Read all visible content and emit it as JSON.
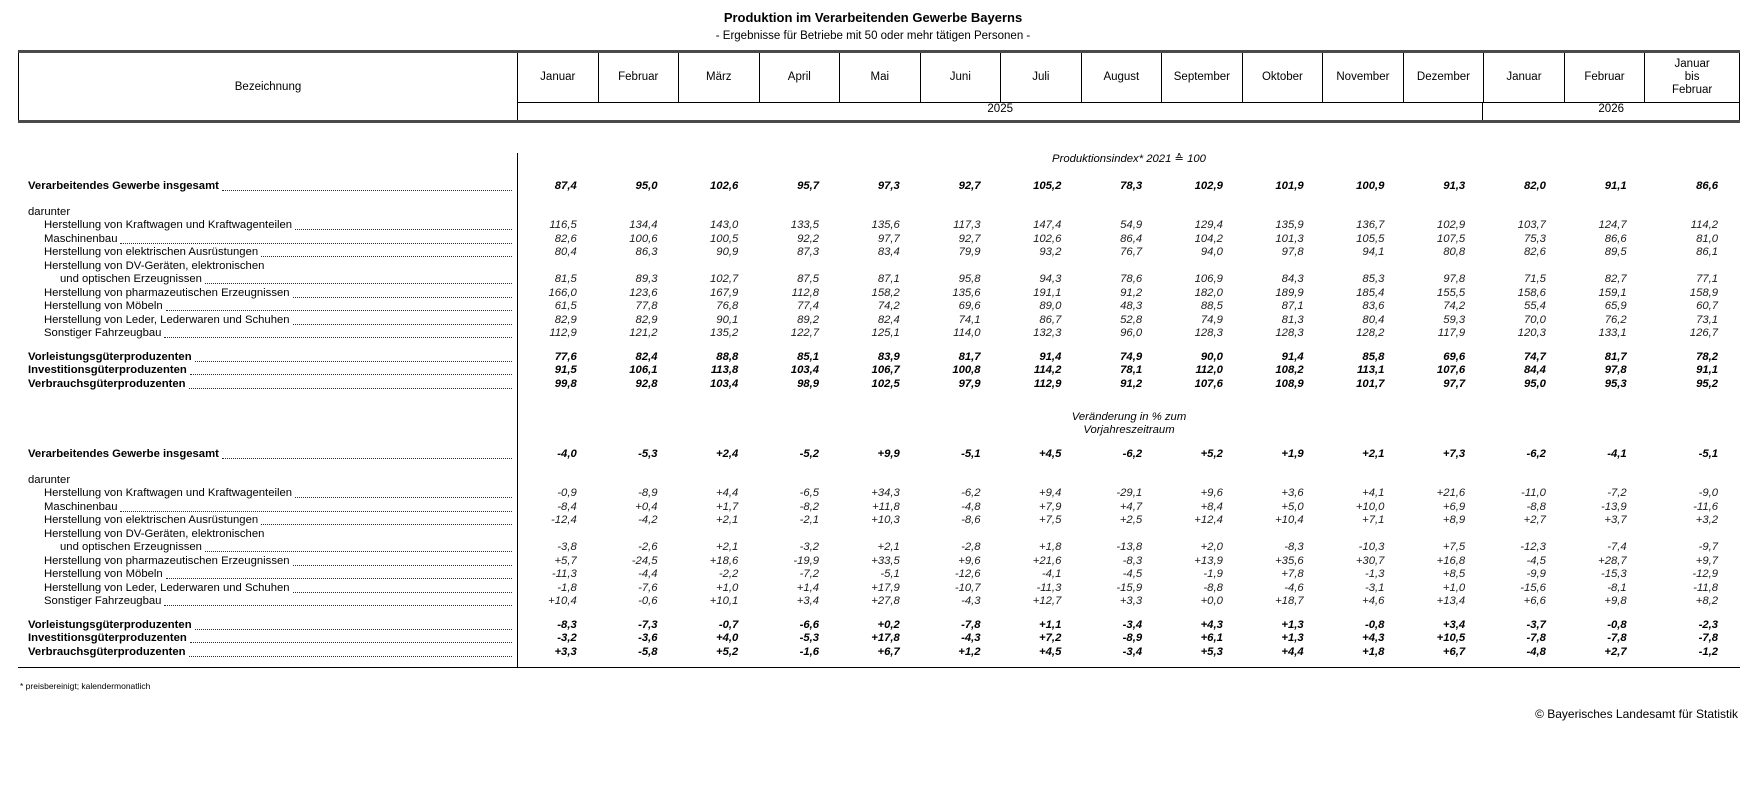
{
  "title": "Produktion im Verarbeitenden Gewerbe Bayerns",
  "subtitle": "- Ergebnisse für Betriebe mit 50 oder mehr tätigen Personen -",
  "footnote": "* preisbereinigt; kalendermonatlich",
  "copyright": "© Bayerisches Landesamt für Statistik",
  "table": {
    "label_col_header": "Bezeichnung",
    "month_cols": [
      "Januar",
      "Februar",
      "März",
      "April",
      "Mai",
      "Juni",
      "Juli",
      "August",
      "September",
      "Oktober",
      "November",
      "Dezember",
      "Januar",
      "Februar",
      "Januar\nbis\nFebruar"
    ],
    "year_2025": "2025",
    "year_2026": "2026",
    "sections": [
      {
        "heading_lines": [
          "Produktionsindex* 2021 ≙ 100"
        ],
        "rows": [
          {
            "label": "Verarbeitendes Gewerbe insgesamt",
            "style": "total",
            "values": [
              "87,4",
              "95,0",
              "102,6",
              "95,7",
              "97,3",
              "92,7",
              "105,2",
              "78,3",
              "102,9",
              "101,9",
              "100,9",
              "91,3",
              "82,0",
              "91,1",
              "86,6"
            ]
          },
          {
            "label": "darunter",
            "style": "plain"
          },
          {
            "label": "Herstellung von Kraftwagen und Kraftwagenteilen",
            "style": "sub",
            "values": [
              "116,5",
              "134,4",
              "143,0",
              "133,5",
              "135,6",
              "117,3",
              "147,4",
              "54,9",
              "129,4",
              "135,9",
              "136,7",
              "102,9",
              "103,7",
              "124,7",
              "114,2"
            ]
          },
          {
            "label": "Maschinenbau",
            "style": "sub",
            "values": [
              "82,6",
              "100,6",
              "100,5",
              "92,2",
              "97,7",
              "92,7",
              "102,6",
              "86,4",
              "104,2",
              "101,3",
              "105,5",
              "107,5",
              "75,3",
              "86,6",
              "81,0"
            ]
          },
          {
            "label": "Herstellung von elektrischen Ausrüstungen",
            "style": "sub",
            "values": [
              "80,4",
              "86,3",
              "90,9",
              "87,3",
              "83,4",
              "79,9",
              "93,2",
              "76,7",
              "94,0",
              "97,8",
              "94,1",
              "80,8",
              "82,6",
              "89,5",
              "86,1"
            ]
          },
          {
            "label": "Herstellung von DV-Geräten, elektronischen",
            "label2": "und optischen Erzeugnissen",
            "style": "sub",
            "values": [
              "81,5",
              "89,3",
              "102,7",
              "87,5",
              "87,1",
              "95,8",
              "94,3",
              "78,6",
              "106,9",
              "84,3",
              "85,3",
              "97,8",
              "71,5",
              "82,7",
              "77,1"
            ]
          },
          {
            "label": "Herstellung von pharmazeutischen Erzeugnissen",
            "style": "sub",
            "values": [
              "166,0",
              "123,6",
              "167,9",
              "112,8",
              "158,2",
              "135,6",
              "191,1",
              "91,2",
              "182,0",
              "189,9",
              "185,4",
              "155,5",
              "158,6",
              "159,1",
              "158,9"
            ]
          },
          {
            "label": "Herstellung von Möbeln",
            "style": "sub",
            "values": [
              "61,5",
              "77,8",
              "76,8",
              "77,4",
              "74,2",
              "69,6",
              "89,0",
              "48,3",
              "88,5",
              "87,1",
              "83,6",
              "74,2",
              "55,4",
              "65,9",
              "60,7"
            ]
          },
          {
            "label": "Herstellung von Leder, Lederwaren und Schuhen",
            "style": "sub",
            "values": [
              "82,9",
              "82,9",
              "90,1",
              "89,2",
              "82,4",
              "74,1",
              "86,7",
              "52,8",
              "74,9",
              "81,3",
              "80,4",
              "59,3",
              "70,0",
              "76,2",
              "73,1"
            ]
          },
          {
            "label": "Sonstiger Fahrzeugbau",
            "style": "sub",
            "values": [
              "112,9",
              "121,2",
              "135,2",
              "122,7",
              "125,1",
              "114,0",
              "132,3",
              "96,0",
              "128,3",
              "128,3",
              "128,2",
              "117,9",
              "120,3",
              "133,1",
              "126,7"
            ]
          },
          {
            "label": "Vorleistungsgüterproduzenten",
            "style": "total",
            "gap": true,
            "values": [
              "77,6",
              "82,4",
              "88,8",
              "85,1",
              "83,9",
              "81,7",
              "91,4",
              "74,9",
              "90,0",
              "91,4",
              "85,8",
              "69,6",
              "74,7",
              "81,7",
              "78,2"
            ]
          },
          {
            "label": "Investitionsgüterproduzenten",
            "style": "total",
            "values": [
              "91,5",
              "106,1",
              "113,8",
              "103,4",
              "106,7",
              "100,8",
              "114,2",
              "78,1",
              "112,0",
              "108,2",
              "113,1",
              "107,6",
              "84,4",
              "97,8",
              "91,1"
            ]
          },
          {
            "label": "Verbrauchsgüterproduzenten",
            "style": "total",
            "values": [
              "99,8",
              "92,8",
              "103,4",
              "98,9",
              "102,5",
              "97,9",
              "112,9",
              "91,2",
              "107,6",
              "108,9",
              "101,7",
              "97,7",
              "95,0",
              "95,3",
              "95,2"
            ]
          }
        ]
      },
      {
        "heading_lines": [
          "Veränderung in % zum",
          "Vorjahreszeitraum"
        ],
        "rows": [
          {
            "label": "Verarbeitendes Gewerbe insgesamt",
            "style": "total",
            "values": [
              "-4,0",
              "-5,3",
              "+2,4",
              "-5,2",
              "+9,9",
              "-5,1",
              "+4,5",
              "-6,2",
              "+5,2",
              "+1,9",
              "+2,1",
              "+7,3",
              "-6,2",
              "-4,1",
              "-5,1"
            ]
          },
          {
            "label": "darunter",
            "style": "plain"
          },
          {
            "label": "Herstellung von Kraftwagen und Kraftwagenteilen",
            "style": "sub",
            "values": [
              "-0,9",
              "-8,9",
              "+4,4",
              "-6,5",
              "+34,3",
              "-6,2",
              "+9,4",
              "-29,1",
              "+9,6",
              "+3,6",
              "+4,1",
              "+21,6",
              "-11,0",
              "-7,2",
              "-9,0"
            ]
          },
          {
            "label": "Maschinenbau",
            "style": "sub",
            "values": [
              "-8,4",
              "+0,4",
              "+1,7",
              "-8,2",
              "+11,8",
              "-4,8",
              "+7,9",
              "+4,7",
              "+8,4",
              "+5,0",
              "+10,0",
              "+6,9",
              "-8,8",
              "-13,9",
              "-11,6"
            ]
          },
          {
            "label": "Herstellung von elektrischen Ausrüstungen",
            "style": "sub",
            "values": [
              "-12,4",
              "-4,2",
              "+2,1",
              "-2,1",
              "+10,3",
              "-8,6",
              "+7,5",
              "+2,5",
              "+12,4",
              "+10,4",
              "+7,1",
              "+8,9",
              "+2,7",
              "+3,7",
              "+3,2"
            ]
          },
          {
            "label": "Herstellung von DV-Geräten, elektronischen",
            "label2": "und optischen Erzeugnissen",
            "style": "sub",
            "values": [
              "-3,8",
              "-2,6",
              "+2,1",
              "-3,2",
              "+2,1",
              "-2,8",
              "+1,8",
              "-13,8",
              "+2,0",
              "-8,3",
              "-10,3",
              "+7,5",
              "-12,3",
              "-7,4",
              "-9,7"
            ]
          },
          {
            "label": "Herstellung von pharmazeutischen Erzeugnissen",
            "style": "sub",
            "values": [
              "+5,7",
              "-24,5",
              "+18,6",
              "-19,9",
              "+33,5",
              "+9,6",
              "+21,6",
              "-8,3",
              "+13,9",
              "+35,6",
              "+30,7",
              "+16,8",
              "-4,5",
              "+28,7",
              "+9,7"
            ]
          },
          {
            "label": "Herstellung von Möbeln",
            "style": "sub",
            "values": [
              "-11,3",
              "-4,4",
              "-2,2",
              "-7,2",
              "-5,1",
              "-12,6",
              "-4,1",
              "-4,5",
              "-1,9",
              "+7,8",
              "-1,3",
              "+8,5",
              "-9,9",
              "-15,3",
              "-12,9"
            ]
          },
          {
            "label": "Herstellung von Leder, Lederwaren und Schuhen",
            "style": "sub",
            "values": [
              "-1,8",
              "-7,6",
              "+1,0",
              "+1,4",
              "+17,9",
              "-10,7",
              "-11,3",
              "-15,9",
              "-8,8",
              "-4,6",
              "-3,1",
              "+1,0",
              "-15,6",
              "-8,1",
              "-11,8"
            ]
          },
          {
            "label": "Sonstiger Fahrzeugbau",
            "style": "sub",
            "values": [
              "+10,4",
              "-0,6",
              "+10,1",
              "+3,4",
              "+27,8",
              "-4,3",
              "+12,7",
              "+3,3",
              "+0,0",
              "+18,7",
              "+4,6",
              "+13,4",
              "+6,6",
              "+9,8",
              "+8,2"
            ]
          },
          {
            "label": "Vorleistungsgüterproduzenten",
            "style": "total",
            "gap": true,
            "values": [
              "-8,3",
              "-7,3",
              "-0,7",
              "-6,6",
              "+0,2",
              "-7,8",
              "+1,1",
              "-3,4",
              "+4,3",
              "+1,3",
              "-0,8",
              "+3,4",
              "-3,7",
              "-0,8",
              "-2,3"
            ]
          },
          {
            "label": "Investitionsgüterproduzenten",
            "style": "total",
            "values": [
              "-3,2",
              "-3,6",
              "+4,0",
              "-5,3",
              "+17,8",
              "-4,3",
              "+7,2",
              "-8,9",
              "+6,1",
              "+1,3",
              "+4,3",
              "+10,5",
              "-7,8",
              "-7,8",
              "-7,8"
            ]
          },
          {
            "label": "Verbrauchsgüterproduzenten",
            "style": "total",
            "values": [
              "+3,3",
              "-5,8",
              "+5,2",
              "-1,6",
              "+6,7",
              "+1,2",
              "+4,5",
              "-3,4",
              "+5,3",
              "+4,4",
              "+1,8",
              "+6,7",
              "-4,8",
              "+2,7",
              "-1,2"
            ]
          }
        ]
      }
    ]
  }
}
